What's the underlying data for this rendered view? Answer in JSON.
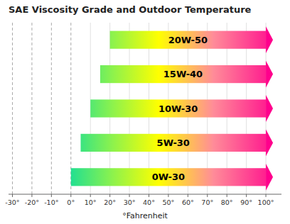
{
  "chart_data": {
    "type": "bar",
    "orientation": "horizontal",
    "title": "SAE Viscosity Grade and Outdoor Temperature",
    "xlabel": "°Fahrenheit",
    "categories": [
      "20W-50",
      "15W-40",
      "10W-30",
      "5W-30",
      "0W-30"
    ],
    "values": [
      [
        20,
        100
      ],
      [
        15,
        100
      ],
      [
        10,
        100
      ],
      [
        5,
        100
      ],
      [
        0,
        100
      ]
    ],
    "xlim": [
      -32,
      108
    ],
    "xticks": [
      {
        "value": -30,
        "label": "-30°"
      },
      {
        "value": -20,
        "label": "-20°"
      },
      {
        "value": -10,
        "label": "-10°"
      },
      {
        "value": 0,
        "label": "0°"
      },
      {
        "value": 10,
        "label": "10°"
      },
      {
        "value": 20,
        "label": "20°"
      },
      {
        "value": 30,
        "label": "30°"
      },
      {
        "value": 40,
        "label": "40°"
      },
      {
        "value": 50,
        "label": "50°"
      },
      {
        "value": 60,
        "label": "60°"
      },
      {
        "value": 70,
        "label": "70°"
      },
      {
        "value": 80,
        "label": "80°"
      },
      {
        "value": 90,
        "label": "90°"
      },
      {
        "value": 100,
        "label": "100°"
      }
    ],
    "grid": true
  }
}
